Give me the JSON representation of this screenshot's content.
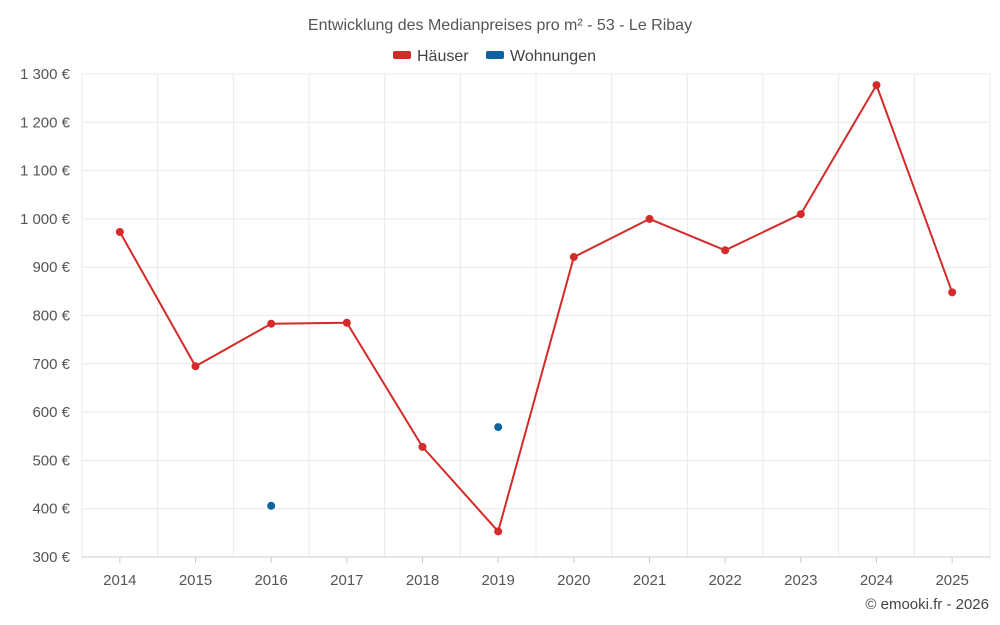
{
  "chart_data": {
    "type": "line",
    "title": "Entwicklung des Medianpreises pro m² - 53 - Le Ribay",
    "categories": [
      "2014",
      "2015",
      "2016",
      "2017",
      "2018",
      "2019",
      "2020",
      "2021",
      "2022",
      "2023",
      "2024",
      "2025"
    ],
    "series": [
      {
        "name": "Häuser",
        "color": "#d42a2a",
        "values": [
          973,
          695,
          783,
          785,
          528,
          353,
          921,
          1000,
          935,
          1010,
          1277,
          848
        ]
      },
      {
        "name": "Wohnungen",
        "color": "#0b64a0",
        "values": [
          null,
          null,
          406,
          null,
          null,
          569,
          null,
          null,
          null,
          null,
          null,
          null
        ]
      }
    ],
    "ylim": [
      300,
      1300
    ],
    "yticks": [
      300,
      400,
      500,
      600,
      700,
      800,
      900,
      1000,
      1100,
      1200,
      1300
    ],
    "ytick_labels": [
      "300 €",
      "400 €",
      "500 €",
      "600 €",
      "700 €",
      "800 €",
      "900 €",
      "1 000 €",
      "1 100 €",
      "1 200 €",
      "1 300 €"
    ],
    "xlabel": "",
    "ylabel": "",
    "grid": true,
    "legend_position": "top-center"
  },
  "credit": "© emooki.fr - 2026"
}
